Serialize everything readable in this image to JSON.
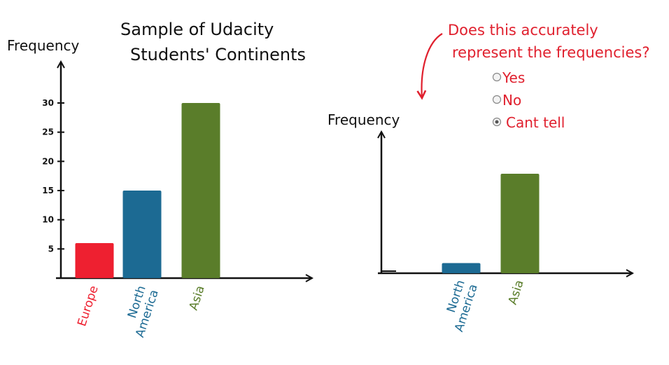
{
  "chart_data": [
    {
      "type": "bar",
      "title": "Sample of Udacity Students' Continents",
      "title_lines": [
        "Sample of Udacity",
        "Students' Continents"
      ],
      "ylabel": "Frequency",
      "xlabel": "",
      "categories": [
        "Europe",
        "North America",
        "Asia"
      ],
      "category_lines": [
        [
          "Europe"
        ],
        [
          "North",
          "America"
        ],
        [
          "Asia"
        ]
      ],
      "values": [
        6,
        15,
        30
      ],
      "colors": [
        "#ee2030",
        "#1c6a93",
        "#5a7d2a"
      ],
      "yticks": [
        5,
        10,
        15,
        20,
        25,
        30
      ],
      "ylim": [
        0,
        32
      ],
      "grid": false,
      "legend": "none"
    },
    {
      "type": "bar",
      "title": "",
      "ylabel": "Frequency",
      "xlabel": "",
      "categories": [
        "North America",
        "Asia"
      ],
      "category_lines": [
        [
          "North",
          "America"
        ],
        [
          "Asia"
        ]
      ],
      "values": [
        1,
        9.8
      ],
      "colors": [
        "#1c6a93",
        "#5a7d2a"
      ],
      "yticks": [],
      "grid": false,
      "legend": "none"
    }
  ],
  "quiz": {
    "question_lines": [
      "Does this accurately",
      "represent the frequencies?"
    ],
    "options": [
      {
        "label": "Yes",
        "selected": false
      },
      {
        "label": "No",
        "selected": false
      },
      {
        "label": "Cant tell",
        "selected": true
      }
    ],
    "accent_color": "#e0202e"
  }
}
